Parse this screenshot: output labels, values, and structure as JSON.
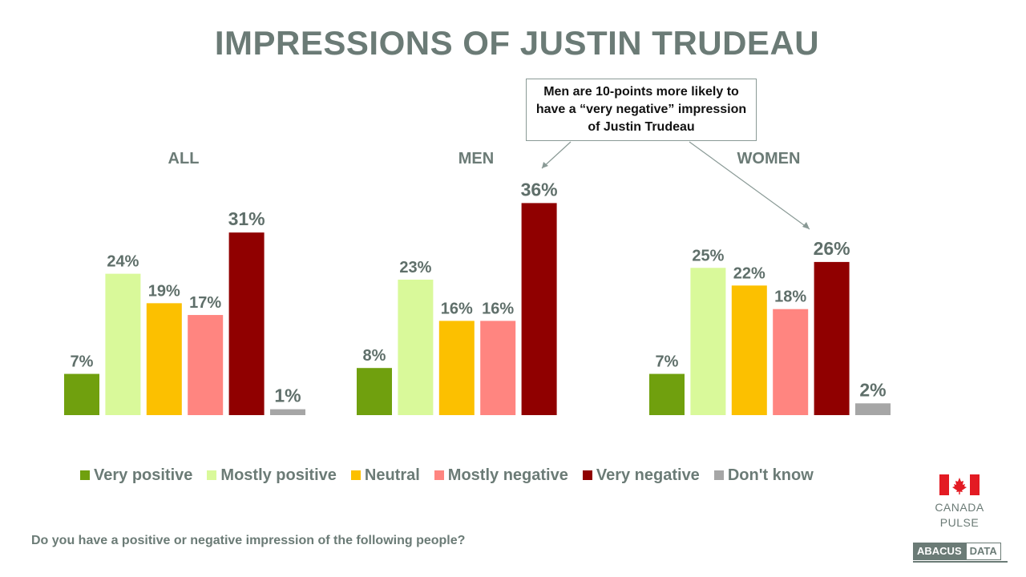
{
  "title": "IMPRESSIONS OF JUSTIN TRUDEAU",
  "callout": "Men are 10-points more likely to have a “very negative” impression of Justin Trudeau",
  "question": "Do you have a positive or negative impression of the following people?",
  "logo": {
    "line1": "CANADA",
    "line2": "PULSE"
  },
  "brand": {
    "part1": "ABACUS",
    "part2": "DATA"
  },
  "colors": {
    "text": "#6b7b76",
    "value_label": "#5f6f6a",
    "Very positive": "#70a00e",
    "Mostly positive": "#d9f99a",
    "Neutral": "#fcc000",
    "Mostly negative": "#ff8580",
    "Very negative": "#900000",
    "Don't know": "#a6a6a6"
  },
  "chart_data": {
    "type": "bar",
    "categories": [
      "Very positive",
      "Mostly positive",
      "Neutral",
      "Mostly negative",
      "Very negative",
      "Don't know"
    ],
    "groups": [
      {
        "name": "ALL",
        "values": [
          7,
          24,
          19,
          17,
          31,
          1
        ]
      },
      {
        "name": "MEN",
        "values": [
          8,
          23,
          16,
          16,
          36,
          null
        ]
      },
      {
        "name": "WOMEN",
        "values": [
          7,
          25,
          22,
          18,
          26,
          2
        ]
      }
    ],
    "value_suffix": "%",
    "legend": [
      "Very positive",
      "Mostly positive",
      "Neutral",
      "Mostly negative",
      "Very negative",
      "Don't know"
    ],
    "legend_position": "bottom",
    "grid": false
  }
}
